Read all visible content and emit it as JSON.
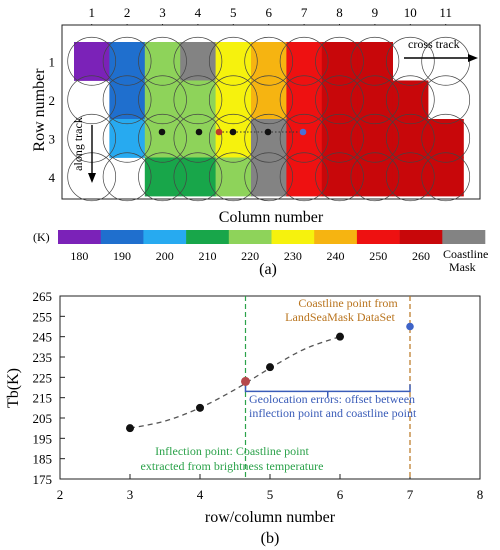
{
  "panel_a": {
    "label": "(a)",
    "column_numbers": [
      "1",
      "2",
      "3",
      "4",
      "5",
      "6",
      "7",
      "8",
      "9",
      "10",
      "11"
    ],
    "row_numbers": [
      "1",
      "2",
      "3",
      "4"
    ],
    "x_axis_label": "Column number",
    "y_axis_label": "Row number",
    "cross_track_label": "cross track",
    "along_track_label": "along track",
    "grid_rows": [
      [
        "purple",
        "blue",
        "lgreen",
        "gray",
        "yellow",
        "orange",
        "red",
        "darkred",
        "darkred",
        "empty",
        "empty"
      ],
      [
        "empty",
        "blue",
        "lgreen",
        "lgreen",
        "yellow",
        "orange",
        "red",
        "darkred",
        "darkred",
        "darkred",
        "empty"
      ],
      [
        "empty",
        "skyblue",
        "lgreen",
        "lgreen",
        "yellow",
        "gray",
        "red",
        "darkred",
        "darkred",
        "darkred",
        "darkred"
      ],
      [
        "empty",
        "empty",
        "green",
        "green",
        "lgreen",
        "gray",
        "red",
        "darkred",
        "darkred",
        "darkred",
        "darkred"
      ]
    ],
    "cell_colors": {
      "purple": "#7b22b8",
      "blue": "#1f6fce",
      "skyblue": "#27aaf0",
      "green": "#18a64a",
      "lgreen": "#8ed35a",
      "yellow": "#f6f20d",
      "orange": "#f6b411",
      "red": "#ee1111",
      "darkred": "#c8070a",
      "gray": "#838383"
    },
    "colorbar": {
      "unit_label": "(K)",
      "tick_labels": [
        "180",
        "190",
        "200",
        "210",
        "220",
        "230",
        "240",
        "250",
        "260"
      ],
      "colors": [
        "#7b22b8",
        "#1f6fce",
        "#27aaf0",
        "#18a64a",
        "#8ed35a",
        "#f6f20d",
        "#f6b411",
        "#ee1111",
        "#c8070a",
        "#838383"
      ],
      "mask_label_line1": "Coastline",
      "mask_label_line2": "Mask"
    }
  },
  "panel_b": {
    "label": "(b)",
    "chart_data": {
      "type": "scatter",
      "xlabel": "row/column number",
      "ylabel": "Tb(K)",
      "xlim": [
        2,
        8
      ],
      "ylim": [
        175,
        265
      ],
      "xticks": [
        2,
        3,
        4,
        5,
        6,
        7,
        8
      ],
      "yticks": [
        175,
        185,
        195,
        205,
        215,
        225,
        235,
        245,
        255,
        265
      ],
      "series": [
        {
          "points": [
            [
              3,
              200
            ],
            [
              4,
              210
            ],
            [
              5,
              230
            ],
            [
              6,
              245
            ]
          ],
          "color": "#111111"
        }
      ],
      "inflection_point": {
        "x": 4.65,
        "y": 223,
        "color": "#b5484b"
      },
      "coastline_point": {
        "x": 7,
        "y": 250,
        "color": "#3f63c7"
      },
      "fit_curve": [
        [
          3,
          200
        ],
        [
          3.5,
          203.5
        ],
        [
          4,
          210
        ],
        [
          4.5,
          219
        ],
        [
          5,
          229.5
        ],
        [
          5.5,
          239
        ],
        [
          6,
          245
        ]
      ],
      "annotations": {
        "coastline_line1": "Coastline point from",
        "coastline_line2": "LandSeaMask DataSet",
        "geolocation_line1": "Geolocation errors: offset between",
        "geolocation_line2": "inflection point and coastline point",
        "inflection_line1": "Inflection point: Coastline point",
        "inflection_line2": "extracted from brightness temperature"
      },
      "annotation_colors": {
        "coastline": "#b9741e",
        "geolocation": "#3a5cb8",
        "inflection": "#2ba24a"
      }
    }
  }
}
